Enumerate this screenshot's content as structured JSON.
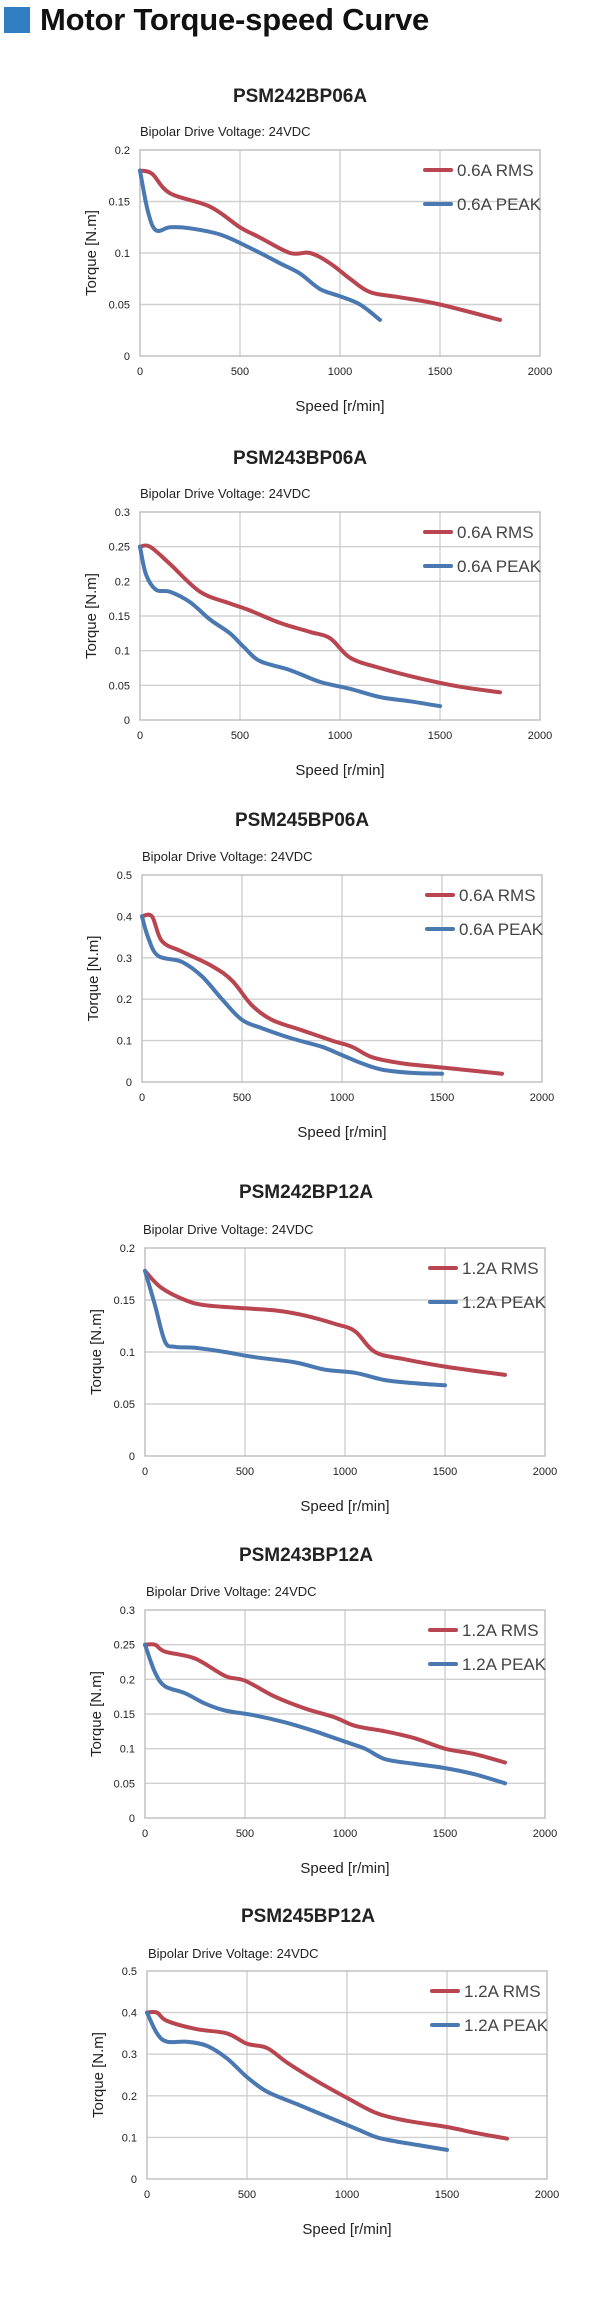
{
  "title": "Motor Torque-speed Curve",
  "chart_data": [
    {
      "type": "line",
      "title": "PSM242BP06A",
      "subtitle": "Bipolar Drive  Voltage: 24VDC",
      "xlabel": "Speed [r/min]",
      "ylabel": "Torque [N.m]",
      "xlim": [
        0,
        2000
      ],
      "ylim": [
        0,
        0.2
      ],
      "xticks": [
        0,
        500,
        1000,
        1500,
        2000
      ],
      "yticks": [
        0,
        0.05,
        0.1,
        0.15,
        0.2
      ],
      "ytick_labels": [
        "0",
        "0.05",
        "0.1",
        "0.15",
        "0.2"
      ],
      "grid": true,
      "legend": "top-right",
      "series": [
        {
          "name": "0.6A RMS",
          "color": "#b8454f",
          "x": [
            0,
            60,
            150,
            350,
            500,
            600,
            750,
            850,
            950,
            1050,
            1150,
            1300,
            1500,
            1800
          ],
          "y": [
            0.18,
            0.177,
            0.158,
            0.145,
            0.125,
            0.115,
            0.1,
            0.1,
            0.09,
            0.075,
            0.062,
            0.057,
            0.05,
            0.035
          ]
        },
        {
          "name": "0.6A PEAK",
          "color": "#4a78b0",
          "x": [
            0,
            40,
            80,
            150,
            250,
            400,
            550,
            700,
            800,
            900,
            1000,
            1100,
            1200
          ],
          "y": [
            0.18,
            0.14,
            0.122,
            0.125,
            0.124,
            0.118,
            0.105,
            0.09,
            0.08,
            0.065,
            0.058,
            0.05,
            0.035
          ]
        }
      ]
    },
    {
      "type": "line",
      "title": "PSM243BP06A",
      "subtitle": "Bipolar Drive  Voltage: 24VDC",
      "xlabel": "Speed [r/min]",
      "ylabel": "Torque [N.m]",
      "xlim": [
        0,
        2000
      ],
      "ylim": [
        0,
        0.3
      ],
      "xticks": [
        0,
        500,
        1000,
        1500,
        2000
      ],
      "yticks": [
        0,
        0.05,
        0.1,
        0.15,
        0.2,
        0.25,
        0.3
      ],
      "ytick_labels": [
        "0",
        "0.05",
        "0.1",
        "0.15",
        "0.2",
        "0.25",
        "0.3"
      ],
      "grid": true,
      "legend": "top-right",
      "series": [
        {
          "name": "0.6A RMS",
          "color": "#b8454f",
          "x": [
            0,
            50,
            150,
            300,
            450,
            550,
            700,
            850,
            950,
            1050,
            1200,
            1400,
            1600,
            1800
          ],
          "y": [
            0.25,
            0.25,
            0.225,
            0.185,
            0.168,
            0.158,
            0.14,
            0.127,
            0.118,
            0.09,
            0.075,
            0.06,
            0.048,
            0.04
          ]
        },
        {
          "name": "0.6A PEAK",
          "color": "#4a78b0",
          "x": [
            0,
            30,
            80,
            150,
            250,
            350,
            450,
            520,
            600,
            750,
            900,
            1050,
            1200,
            1350,
            1500
          ],
          "y": [
            0.25,
            0.21,
            0.188,
            0.185,
            0.17,
            0.145,
            0.125,
            0.105,
            0.085,
            0.072,
            0.055,
            0.045,
            0.033,
            0.027,
            0.02
          ]
        }
      ]
    },
    {
      "type": "line",
      "title": "PSM245BP06A",
      "subtitle": "Bipolar Drive  Voltage: 24VDC",
      "xlabel": "Speed [r/min]",
      "ylabel": "Torque [N.m]",
      "xlim": [
        0,
        2000
      ],
      "ylim": [
        0,
        0.5
      ],
      "xticks": [
        0,
        500,
        1000,
        1500,
        2000
      ],
      "yticks": [
        0,
        0.1,
        0.2,
        0.3,
        0.4,
        0.5
      ],
      "ytick_labels": [
        "0",
        "0.1",
        "0.2",
        "0.3",
        "0.4",
        "0.5"
      ],
      "grid": true,
      "legend": "top-right",
      "series": [
        {
          "name": "0.6A RMS",
          "color": "#b8454f",
          "x": [
            0,
            50,
            100,
            200,
            350,
            450,
            550,
            650,
            800,
            950,
            1050,
            1150,
            1300,
            1500,
            1800
          ],
          "y": [
            0.4,
            0.4,
            0.34,
            0.315,
            0.28,
            0.245,
            0.185,
            0.15,
            0.125,
            0.1,
            0.085,
            0.06,
            0.045,
            0.035,
            0.02
          ]
        },
        {
          "name": "0.6A PEAK",
          "color": "#4a78b0",
          "x": [
            0,
            30,
            80,
            200,
            300,
            400,
            500,
            600,
            750,
            900,
            1000,
            1100,
            1200,
            1350,
            1500
          ],
          "y": [
            0.4,
            0.35,
            0.305,
            0.29,
            0.255,
            0.2,
            0.15,
            0.13,
            0.105,
            0.085,
            0.065,
            0.045,
            0.03,
            0.022,
            0.02
          ]
        }
      ]
    },
    {
      "type": "line",
      "title": "PSM242BP12A",
      "subtitle": "Bipolar Drive  Voltage: 24VDC",
      "xlabel": "Speed [r/min]",
      "ylabel": "Torque [N.m]",
      "xlim": [
        0,
        2000
      ],
      "ylim": [
        0,
        0.2
      ],
      "xticks": [
        0,
        500,
        1000,
        1500,
        2000
      ],
      "yticks": [
        0,
        0.05,
        0.1,
        0.15,
        0.2
      ],
      "ytick_labels": [
        "0",
        "0.05",
        "0.1",
        "0.15",
        "0.2"
      ],
      "grid": true,
      "legend": "top-right",
      "series": [
        {
          "name": "1.2A RMS",
          "color": "#b8454f",
          "x": [
            0,
            80,
            200,
            300,
            500,
            650,
            800,
            950,
            1050,
            1150,
            1300,
            1500,
            1800
          ],
          "y": [
            0.178,
            0.162,
            0.15,
            0.145,
            0.142,
            0.14,
            0.135,
            0.127,
            0.12,
            0.1,
            0.093,
            0.086,
            0.078
          ]
        },
        {
          "name": "1.2A PEAK",
          "color": "#4a78b0",
          "x": [
            0,
            50,
            100,
            150,
            250,
            400,
            550,
            750,
            900,
            1050,
            1200,
            1350,
            1500
          ],
          "y": [
            0.178,
            0.145,
            0.11,
            0.105,
            0.104,
            0.1,
            0.095,
            0.09,
            0.083,
            0.08,
            0.073,
            0.07,
            0.068
          ]
        }
      ]
    },
    {
      "type": "line",
      "title": "PSM243BP12A",
      "subtitle": "Bipolar Drive  Voltage: 24VDC",
      "xlabel": "Speed [r/min]",
      "ylabel": "Torque [N.m]",
      "xlim": [
        0,
        2000
      ],
      "ylim": [
        0,
        0.3
      ],
      "xticks": [
        0,
        500,
        1000,
        1500,
        2000
      ],
      "yticks": [
        0,
        0.05,
        0.1,
        0.15,
        0.2,
        0.25,
        0.3
      ],
      "ytick_labels": [
        "0",
        "0.05",
        "0.1",
        "0.15",
        "0.2",
        "0.25",
        "0.3"
      ],
      "grid": true,
      "legend": "top-right",
      "series": [
        {
          "name": "1.2A RMS",
          "color": "#b8454f",
          "x": [
            0,
            50,
            100,
            250,
            400,
            500,
            650,
            800,
            950,
            1050,
            1200,
            1350,
            1500,
            1650,
            1800
          ],
          "y": [
            0.25,
            0.25,
            0.24,
            0.23,
            0.205,
            0.198,
            0.175,
            0.158,
            0.145,
            0.133,
            0.125,
            0.115,
            0.1,
            0.092,
            0.08
          ]
        },
        {
          "name": "1.2A PEAK",
          "color": "#4a78b0",
          "x": [
            0,
            50,
            100,
            200,
            300,
            400,
            550,
            700,
            850,
            1000,
            1100,
            1200,
            1350,
            1500,
            1650,
            1800
          ],
          "y": [
            0.25,
            0.21,
            0.19,
            0.18,
            0.165,
            0.155,
            0.148,
            0.138,
            0.125,
            0.11,
            0.1,
            0.085,
            0.078,
            0.072,
            0.063,
            0.05
          ]
        }
      ]
    },
    {
      "type": "line",
      "title": "PSM245BP12A",
      "subtitle": "Bipolar Drive  Voltage: 24VDC",
      "xlabel": "Speed [r/min]",
      "ylabel": "Torque [N.m]",
      "xlim": [
        0,
        2000
      ],
      "ylim": [
        0,
        0.5
      ],
      "xticks": [
        0,
        500,
        1000,
        1500,
        2000
      ],
      "yticks": [
        0,
        0.1,
        0.2,
        0.3,
        0.4,
        0.5
      ],
      "ytick_labels": [
        "0",
        "0.1",
        "0.2",
        "0.3",
        "0.4",
        "0.5"
      ],
      "grid": true,
      "legend": "top-right",
      "series": [
        {
          "name": "1.2A RMS",
          "color": "#b8454f",
          "x": [
            0,
            50,
            100,
            250,
            400,
            500,
            600,
            700,
            850,
            1000,
            1150,
            1300,
            1500,
            1650,
            1800
          ],
          "y": [
            0.4,
            0.4,
            0.38,
            0.36,
            0.35,
            0.325,
            0.315,
            0.28,
            0.235,
            0.195,
            0.158,
            0.14,
            0.125,
            0.11,
            0.097
          ]
        },
        {
          "name": "1.2A PEAK",
          "color": "#4a78b0",
          "x": [
            0,
            50,
            100,
            200,
            300,
            400,
            500,
            600,
            750,
            900,
            1050,
            1150,
            1250,
            1350,
            1500
          ],
          "y": [
            0.4,
            0.35,
            0.33,
            0.33,
            0.32,
            0.29,
            0.245,
            0.21,
            0.18,
            0.15,
            0.12,
            0.1,
            0.09,
            0.082,
            0.07
          ]
        }
      ]
    }
  ]
}
